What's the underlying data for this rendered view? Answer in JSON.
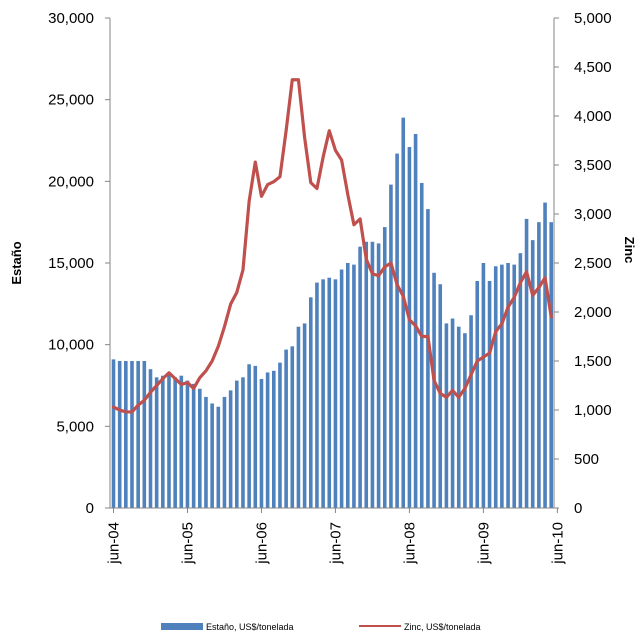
{
  "chart_data": {
    "type": "bar",
    "title": "",
    "xlabel": "",
    "ylabel": "Estaño",
    "y2label": "Zinc",
    "ylim": [
      0,
      30000
    ],
    "y2lim": [
      0,
      5000
    ],
    "yticks": [
      "0",
      "5,000",
      "10,000",
      "15,000",
      "20,000",
      "25,000",
      "30,000"
    ],
    "y2ticks": [
      "0",
      "500",
      "1,000",
      "1,500",
      "2,000",
      "2,500",
      "3,000",
      "3,500",
      "4,000",
      "4,500",
      "5,000"
    ],
    "xticks": [
      "jun-04",
      "jun-05",
      "jun-06",
      "jun-07",
      "jun-08",
      "jun-09",
      "jun-10"
    ],
    "grid": false,
    "legend_position": "bottom",
    "series": [
      {
        "name": "Estaño, US$/tonelada",
        "type": "bar",
        "axis": "left",
        "color": "#4f81bd",
        "start_month": "2004-06",
        "values": [
          9100,
          9000,
          9000,
          9000,
          9000,
          9000,
          8500,
          8000,
          8100,
          8200,
          8000,
          8100,
          7800,
          7600,
          7300,
          6800,
          6400,
          6200,
          6800,
          7200,
          7800,
          8000,
          8800,
          8700,
          7900,
          8300,
          8400,
          8900,
          9700,
          9900,
          11100,
          11300,
          12900,
          13800,
          14000,
          14100,
          14000,
          14600,
          15000,
          14900,
          16000,
          16300,
          16300,
          16200,
          17200,
          19800,
          21700,
          23900,
          22100,
          22900,
          19900,
          18300,
          14400,
          13700,
          11300,
          11600,
          11100,
          10700,
          11800,
          13900,
          15000,
          13900,
          14800,
          14900,
          15000,
          14900,
          15600,
          17700,
          16400,
          17500,
          18700,
          17500
        ]
      },
      {
        "name": "Zinc, US$/tonelada",
        "type": "line",
        "axis": "right",
        "color": "#c0504d",
        "start_month": "2004-06",
        "values": [
          1030,
          1000,
          980,
          980,
          1050,
          1100,
          1180,
          1250,
          1320,
          1380,
          1320,
          1260,
          1280,
          1220,
          1330,
          1400,
          1500,
          1650,
          1850,
          2080,
          2200,
          2430,
          3130,
          3530,
          3180,
          3300,
          3330,
          3380,
          3850,
          4370,
          4370,
          3780,
          3320,
          3260,
          3580,
          3850,
          3650,
          3550,
          3200,
          2890,
          2950,
          2540,
          2390,
          2370,
          2460,
          2500,
          2280,
          2160,
          1920,
          1860,
          1750,
          1750,
          1300,
          1170,
          1130,
          1200,
          1130,
          1220,
          1360,
          1500,
          1540,
          1580,
          1800,
          1880,
          2050,
          2150,
          2300,
          2410,
          2170,
          2250,
          2350,
          1950
        ]
      }
    ]
  }
}
